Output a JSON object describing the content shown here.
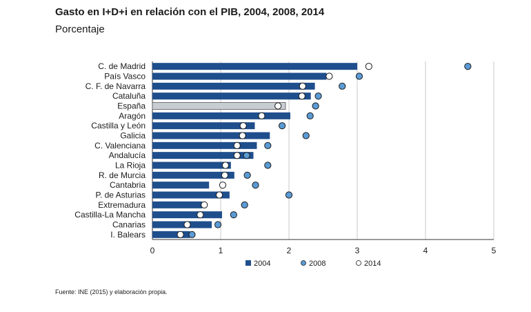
{
  "header": {
    "title": "Gasto en I+D+i en relación con el PIB, 2004, 2008, 2014",
    "subtitle": "Porcentaje"
  },
  "footer": {
    "source": "Fuente: INE (2015) y elaboración propia."
  },
  "colors": {
    "bar": "#1f4e8c",
    "bar_highlight": "#c8cdd3",
    "dot_2008": "#5b9bd5",
    "dot_2014": "#ffffff",
    "grid": "#c8c8c8"
  },
  "chart_data": {
    "type": "bar",
    "orientation": "horizontal",
    "categories": [
      "C. de Madrid",
      "País Vasco",
      "C. F. de Navarra",
      "Cataluña",
      "España",
      "Aragón",
      "Castilla y León",
      "Galicia",
      "C. Valenciana",
      "Andalucía",
      "La Rioja",
      "R. de Murcia",
      "Cantabria",
      "P. de Asturias",
      "Extremadura",
      "Castilla-La Mancha",
      "Canarias",
      "I. Balears"
    ],
    "highlight_category": "España",
    "series": [
      {
        "name": "2004",
        "kind": "bar",
        "values": [
          3.0,
          2.55,
          2.38,
          2.32,
          1.95,
          2.02,
          1.5,
          1.72,
          1.53,
          1.48,
          1.15,
          1.2,
          0.83,
          1.13,
          0.73,
          1.02,
          0.87,
          0.55
        ]
      },
      {
        "name": "2008",
        "kind": "dot",
        "values": [
          4.62,
          3.03,
          2.78,
          2.43,
          2.39,
          2.31,
          1.9,
          2.25,
          1.69,
          1.38,
          1.69,
          1.39,
          1.51,
          2.0,
          1.35,
          1.19,
          0.96,
          0.58
        ]
      },
      {
        "name": "2014",
        "kind": "dot",
        "values": [
          3.17,
          2.59,
          2.2,
          2.19,
          1.84,
          1.6,
          1.33,
          1.32,
          1.24,
          1.24,
          1.07,
          1.06,
          1.03,
          0.98,
          0.76,
          0.7,
          0.51,
          0.41
        ]
      }
    ],
    "xticks": [
      0,
      1,
      2,
      3,
      4,
      5
    ],
    "xlim": [
      0,
      5
    ],
    "grid": true,
    "legend_position": "bottom"
  }
}
